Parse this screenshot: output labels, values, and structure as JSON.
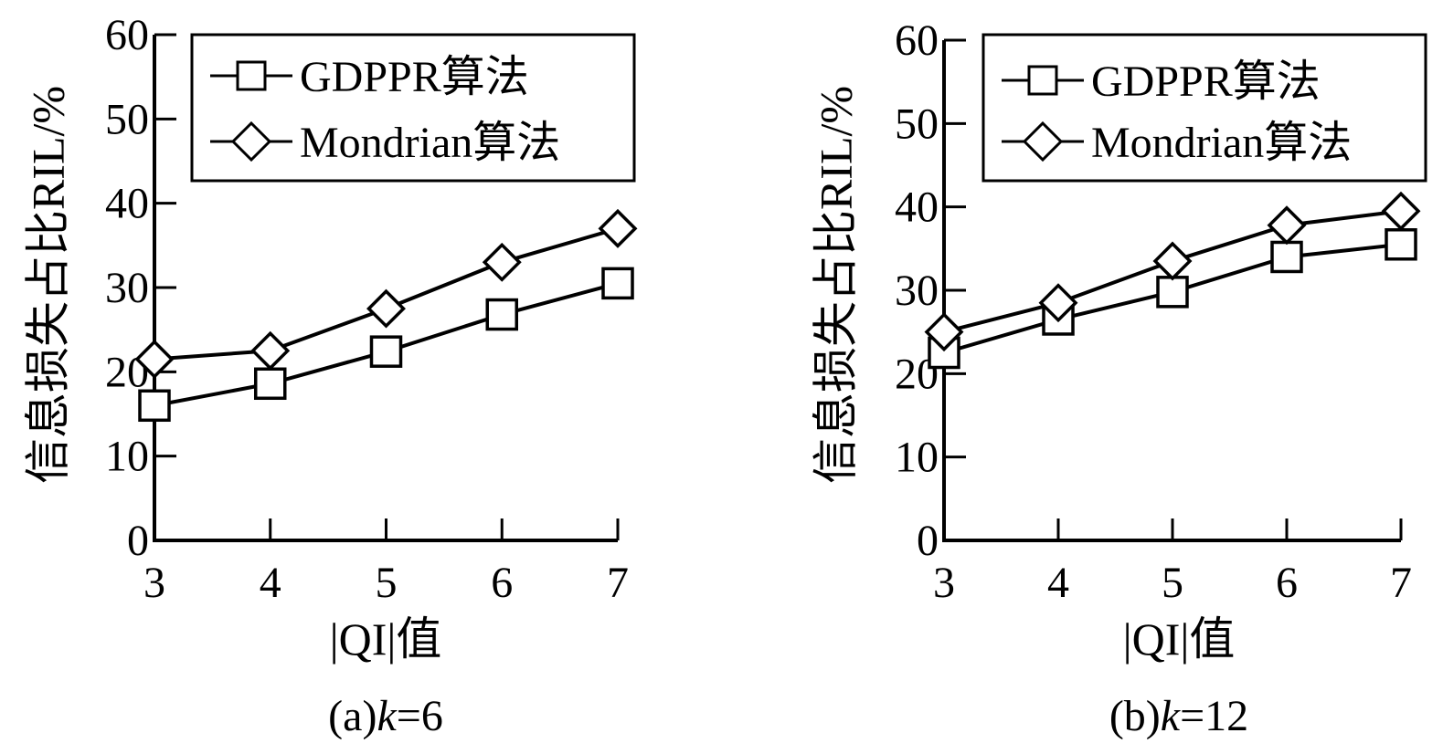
{
  "chart_data": [
    {
      "type": "line",
      "caption": "(a)k=6",
      "caption_parts": {
        "prefix": "(a)",
        "var": "k",
        "suffix": "=6"
      },
      "xlabel": "|QI|值",
      "ylabel": "信息损失占比RIL/%",
      "x": [
        3,
        4,
        5,
        6,
        7
      ],
      "xlim": [
        3,
        7
      ],
      "ylim": [
        0,
        60
      ],
      "yticks": [
        0,
        10,
        20,
        30,
        40,
        50,
        60
      ],
      "series": [
        {
          "name": "GDPPR算法",
          "marker": "square",
          "values": [
            16,
            18.6,
            22.4,
            26.8,
            30.5
          ]
        },
        {
          "name": "Mondrian算法",
          "marker": "diamond",
          "values": [
            21.5,
            22.5,
            27.5,
            33,
            37
          ]
        }
      ],
      "legend": "top-right",
      "grid": false
    },
    {
      "type": "line",
      "caption": "(b)k=12",
      "caption_parts": {
        "prefix": "(b)",
        "var": "k",
        "suffix": "=12"
      },
      "xlabel": "|QI|值",
      "ylabel": "信息损失占比RIL/%",
      "x": [
        3,
        4,
        5,
        6,
        7
      ],
      "xlim": [
        3,
        7
      ],
      "ylim": [
        0,
        60
      ],
      "yticks": [
        0,
        10,
        20,
        30,
        40,
        50,
        60
      ],
      "series": [
        {
          "name": "GDPPR算法",
          "marker": "square",
          "values": [
            22.5,
            26.5,
            29.8,
            34,
            35.5
          ]
        },
        {
          "name": "Mondrian算法",
          "marker": "diamond",
          "values": [
            25,
            28.5,
            33.5,
            37.8,
            39.5
          ]
        }
      ],
      "legend": "top-right",
      "grid": false
    }
  ]
}
